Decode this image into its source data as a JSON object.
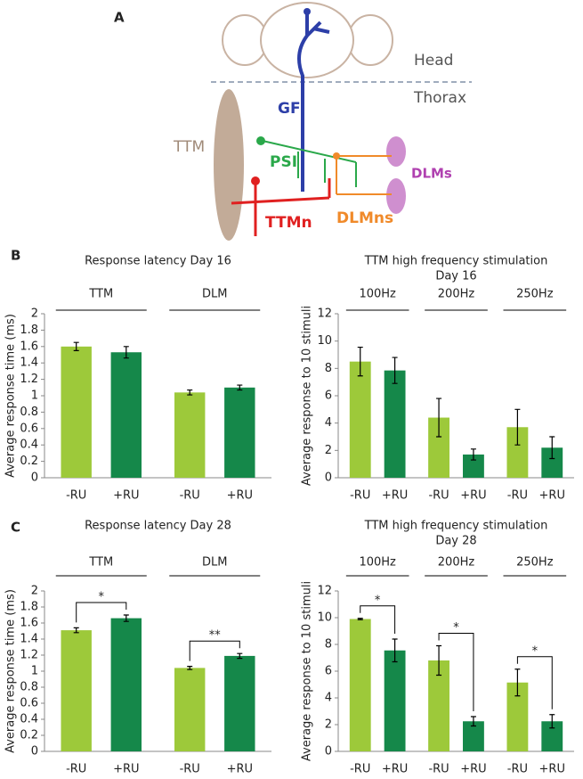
{
  "panel_labels": [
    "A",
    "B",
    "C"
  ],
  "diagram": {
    "head": "Head",
    "thorax": "Thorax",
    "gf": "GF",
    "ttm": "TTM",
    "psi": "PSI",
    "dlms": "DLMs",
    "ttmn": "TTMn",
    "dlmns": "DLMns"
  },
  "chart_data": [
    {
      "type": "bar",
      "title": "Response latency  Day 16",
      "y_label": "Average response time (ms)",
      "categories": [
        "-RU",
        "+RU",
        "-RU",
        "+RU"
      ],
      "values": [
        1.6,
        1.53,
        1.04,
        1.1
      ],
      "errors": [
        0.05,
        0.07,
        0.03,
        0.03
      ],
      "colors": [
        "#9dc93a",
        "#15884a",
        "#9dc93a",
        "#15884a"
      ],
      "groups": [
        {
          "name": "TTM"
        },
        {
          "name": "DLM"
        }
      ],
      "ylim": [
        0,
        2
      ],
      "yticks": [
        0,
        0.2,
        0.4,
        0.6,
        0.8,
        1,
        1.2,
        1.4,
        1.6,
        1.8,
        2
      ]
    },
    {
      "type": "bar",
      "title": "TTM high frequency stimulation",
      "subtitle": "Day 16",
      "y_label": "Average response to 10 stimuli",
      "categories": [
        "-RU",
        "+RU",
        "-RU",
        "+RU",
        "-RU",
        "+RU"
      ],
      "values": [
        8.5,
        7.85,
        4.4,
        1.7,
        3.7,
        2.2
      ],
      "errors": [
        1.05,
        0.95,
        1.4,
        0.4,
        1.3,
        0.8
      ],
      "colors": [
        "#9dc93a",
        "#15884a",
        "#9dc93a",
        "#15884a",
        "#9dc93a",
        "#15884a"
      ],
      "groups": [
        {
          "name": "100Hz"
        },
        {
          "name": "200Hz"
        },
        {
          "name": "250Hz"
        }
      ],
      "ylim": [
        0,
        12
      ],
      "yticks": [
        0,
        2,
        4,
        6,
        8,
        10,
        12
      ]
    },
    {
      "type": "bar",
      "title": "Response latency Day 28",
      "y_label": "Average response time (ms)",
      "categories": [
        "-RU",
        "+RU",
        "-RU",
        "+RU"
      ],
      "values": [
        1.51,
        1.66,
        1.04,
        1.19
      ],
      "errors": [
        0.03,
        0.04,
        0.02,
        0.03
      ],
      "colors": [
        "#9dc93a",
        "#15884a",
        "#9dc93a",
        "#15884a"
      ],
      "groups": [
        {
          "name": "TTM",
          "annotation": "*"
        },
        {
          "name": "DLM",
          "annotation": "**"
        }
      ],
      "ylim": [
        0,
        2
      ],
      "yticks": [
        0,
        0.2,
        0.4,
        0.6,
        0.8,
        1,
        1.2,
        1.4,
        1.6,
        1.8,
        2
      ]
    },
    {
      "type": "bar",
      "title": "TTM high frequency stimulation",
      "subtitle": "Day 28",
      "y_label": "Average response to 10 stimuli",
      "categories": [
        "-RU",
        "+RU",
        "-RU",
        "+RU",
        "-RU",
        "+RU"
      ],
      "values": [
        9.9,
        7.55,
        6.8,
        2.25,
        5.15,
        2.25
      ],
      "errors": [
        0.05,
        0.85,
        1.1,
        0.35,
        1.0,
        0.5
      ],
      "colors": [
        "#9dc93a",
        "#15884a",
        "#9dc93a",
        "#15884a",
        "#9dc93a",
        "#15884a"
      ],
      "groups": [
        {
          "name": "100Hz",
          "annotation": "*"
        },
        {
          "name": "200Hz",
          "annotation": "*"
        },
        {
          "name": "250Hz",
          "annotation": "*"
        }
      ],
      "ylim": [
        0,
        12
      ],
      "yticks": [
        0,
        2,
        4,
        6,
        8,
        10,
        12
      ]
    }
  ]
}
